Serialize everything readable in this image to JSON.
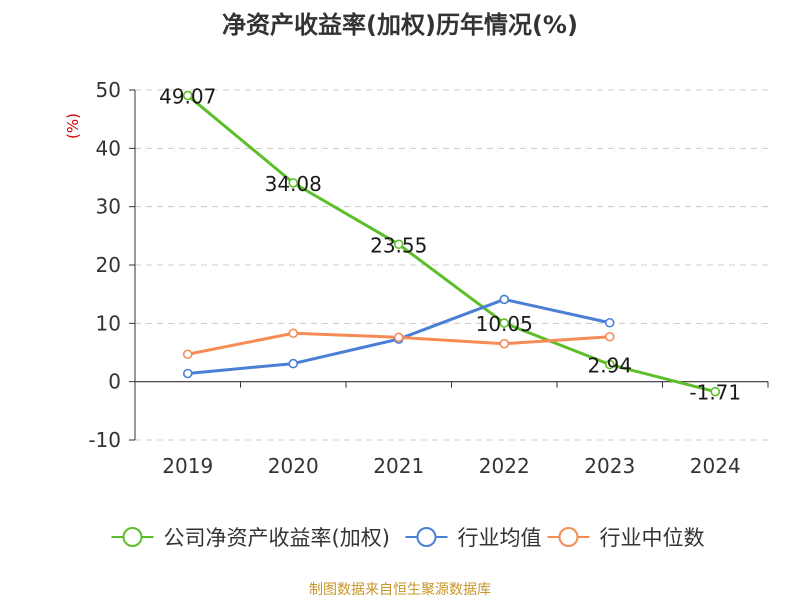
{
  "chart_data": {
    "type": "line",
    "title": "净资产收益率(加权)历年情况(%)",
    "ylabel": "(%)",
    "xlabel": "",
    "categories": [
      "2019",
      "2020",
      "2021",
      "2022",
      "2023",
      "2024"
    ],
    "ylim": [
      -10,
      50
    ],
    "yticks": [
      -10,
      0,
      10,
      20,
      30,
      40,
      50
    ],
    "grid": true,
    "legend_position": "bottom",
    "series": [
      {
        "name": "公司净资产收益率(加权)",
        "color": "#5cbf2a",
        "values": [
          49.07,
          34.08,
          23.55,
          10.05,
          2.94,
          -1.71
        ],
        "data_labels": [
          "49.07",
          "34.08",
          "23.55",
          "10.05",
          "2.94",
          "-1.71"
        ]
      },
      {
        "name": "行业均值",
        "color": "#4a7fd6",
        "values": [
          1.4,
          3.1,
          7.3,
          14.1,
          10.1,
          null
        ]
      },
      {
        "name": "行业中位数",
        "color": "#f58b55",
        "values": [
          4.7,
          8.3,
          7.6,
          6.5,
          7.7,
          null
        ]
      }
    ]
  },
  "footer": {
    "source": "制图数据来自恒生聚源数据库"
  }
}
